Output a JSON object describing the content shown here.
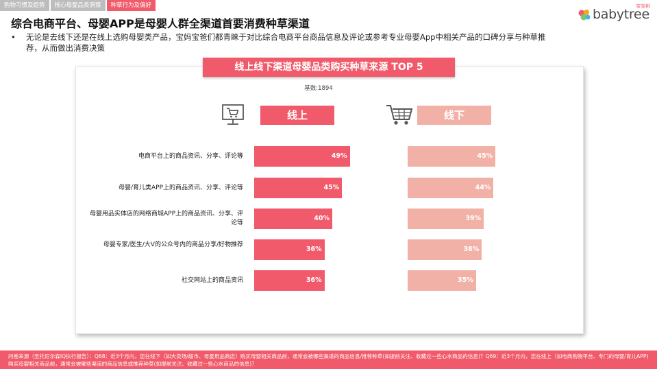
{
  "tabs": [
    {
      "label": "购物习惯及趋势",
      "active": false
    },
    {
      "label": "核心母婴品类洞察",
      "active": false
    },
    {
      "label": "种草行为及偏好",
      "active": true
    }
  ],
  "logo": {
    "text": "babytree",
    "sub": "宝宝树"
  },
  "title": "综合电商平台、母婴APP是母婴人群全渠道首要消费种草渠道",
  "bullet": "无论是去线下还是在线上选购母婴类产品，宝妈宝爸们都青睐于对比综合电商平台商品信息及评论或参考专业母婴App中相关产品的口碑分享与种草推荐，从而做出消费决策",
  "base_label": "基数:1894",
  "colors": {
    "accent": "#f05a6a",
    "online": "#f05a6a",
    "offline": "#f2b1a7",
    "tab_inactive": "#bdbdbd"
  },
  "chart_data": {
    "type": "bar",
    "title": "线上线下渠道母婴品类购买种草来源 TOP 5",
    "categories": [
      "电商平台上的商品资讯、分享、评论等",
      "母婴/育儿类APP上的商品资讯、分享、评论等",
      "母婴用品实体店的网络商城APP上的商品资讯、分享、评论等",
      "母婴专家/医生/大V的公众号内的商品分享/好物推荐",
      "社交网站上的商品资讯"
    ],
    "series": [
      {
        "name": "线上",
        "values": [
          49,
          45,
          40,
          36,
          36
        ],
        "labels": [
          "49%",
          "45%",
          "40%",
          "36%",
          "36%"
        ],
        "icon": "computer-cart-icon"
      },
      {
        "name": "线下",
        "values": [
          45,
          44,
          39,
          38,
          35
        ],
        "labels": [
          "45%",
          "44%",
          "39%",
          "38%",
          "35%"
        ],
        "icon": "shopping-cart-icon"
      }
    ],
    "value_unit": "%"
  },
  "footer": "问卷来源（圣托尼尔森IQ执行报告）：Q68：近3个月内，您在线下（如大卖场/超市、母婴用品商店）购买母婴相关商品前，通常会被哪些渠道的商品信息/推荐种草(如提前关注、收藏过一些心水商品的信息)？Q69：近3个月内，您在线上（如电商购物平台、专门的母婴/育儿APP)购买母婴相关商品前，通常会被哪些渠道的商品信息或推荐种草(如提前关注、收藏过一些心水商品的信息)？"
}
